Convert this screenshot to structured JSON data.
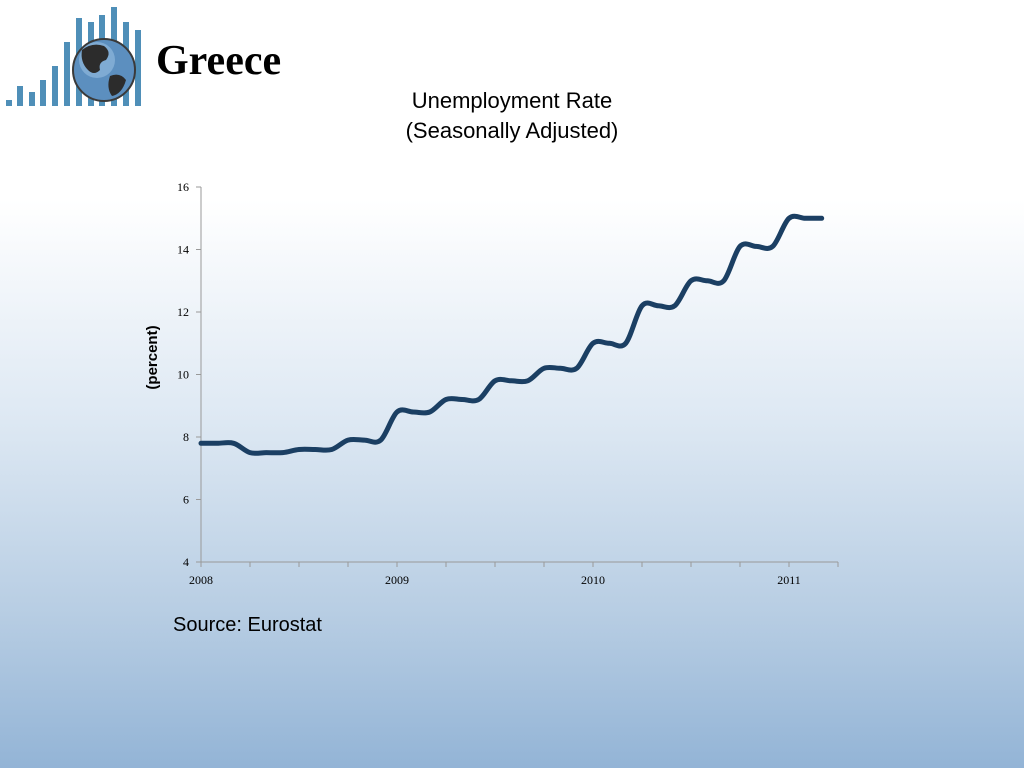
{
  "header": {
    "country": "Greece"
  },
  "logo": {
    "icon": "globe-bar-chart-logo",
    "bar_color": "#4f8fb8",
    "globe_color": "#3f6f95"
  },
  "chart_data": {
    "type": "line",
    "title": "Unemployment Rate",
    "subtitle": "(Seasonally Adjusted)",
    "xlabel": "",
    "ylabel": "(percent)",
    "ylim": [
      4,
      16
    ],
    "yticks": [
      4,
      6,
      8,
      10,
      12,
      14,
      16
    ],
    "xlim": [
      2008.0,
      2011.25
    ],
    "xticks": [
      {
        "value": 2008,
        "label": "2008"
      },
      {
        "value": 2009,
        "label": "2009"
      },
      {
        "value": 2010,
        "label": "2010"
      },
      {
        "value": 2011,
        "label": "2011"
      }
    ],
    "minor_ticks_per_year": 4,
    "grid": false,
    "line_color": "#1b3f63",
    "series": [
      {
        "name": "",
        "x": [
          2008.0,
          2008.083,
          2008.167,
          2008.25,
          2008.333,
          2008.417,
          2008.5,
          2008.583,
          2008.667,
          2008.75,
          2008.833,
          2008.917,
          2009.0,
          2009.083,
          2009.167,
          2009.25,
          2009.333,
          2009.417,
          2009.5,
          2009.583,
          2009.667,
          2009.75,
          2009.833,
          2009.917,
          2010.0,
          2010.083,
          2010.167,
          2010.25,
          2010.333,
          2010.417,
          2010.5,
          2010.583,
          2010.667,
          2010.75,
          2010.833,
          2010.917,
          2011.0,
          2011.083,
          2011.167
        ],
        "values": [
          7.8,
          7.8,
          7.8,
          7.5,
          7.5,
          7.5,
          7.6,
          7.6,
          7.6,
          7.9,
          7.9,
          7.9,
          8.8,
          8.8,
          8.8,
          9.2,
          9.2,
          9.2,
          9.8,
          9.8,
          9.8,
          10.2,
          10.2,
          10.2,
          11.0,
          11.0,
          11.0,
          12.2,
          12.2,
          12.2,
          13.0,
          13.0,
          13.0,
          14.1,
          14.1,
          14.1,
          15.0,
          15.0,
          15.0
        ]
      }
    ]
  },
  "footer": {
    "source": "Source: Eurostat"
  }
}
